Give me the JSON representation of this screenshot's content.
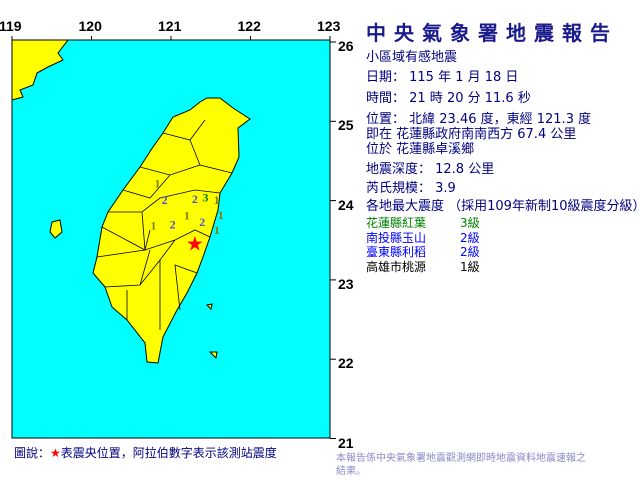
{
  "header": {
    "title": "中央氣象署地震報告",
    "subtitle": "小區域有感地震"
  },
  "report": {
    "date": "日期： 115 年 1 月 18 日",
    "time": "時間： 21 時 20 分 11.6 秒",
    "location": "位置： 北緯 23.46 度，東經 121.3 度",
    "relative": "即在 花蓮縣政府南南西方 67.4 公里",
    "township": "位於 花蓮縣卓溪鄉",
    "depth": "地震深度： 12.8 公里",
    "magnitude": "芮氏規模： 3.9",
    "intensity_header": "各地最大震度 （採用109年新制10級震度分級）"
  },
  "stations": [
    {
      "name": "花蓮縣紅葉",
      "level": "3級",
      "color": "#008000"
    },
    {
      "name": "南投縣玉山",
      "level": "2級",
      "color": "#0000ff"
    },
    {
      "name": "臺東縣利稻",
      "level": "2級",
      "color": "#0000ff"
    },
    {
      "name": "高雄市桃源",
      "level": "1級",
      "color": "#000000"
    }
  ],
  "map": {
    "lon_labels": [
      "119",
      "120",
      "121",
      "122",
      "123"
    ],
    "lat_labels": [
      "26",
      "25",
      "24",
      "23",
      "22",
      "21"
    ],
    "epicenter": {
      "lat": 23.46,
      "lon": 121.3,
      "icon": "red-star"
    },
    "intensity_marks": [
      {
        "v": "1",
        "lon": 120.83,
        "lat": 24.23
      },
      {
        "v": "2",
        "lon": 120.92,
        "lat": 24.02
      },
      {
        "v": "1",
        "lon": 120.78,
        "lat": 23.7
      },
      {
        "v": "2",
        "lon": 121.02,
        "lat": 23.71
      },
      {
        "v": "1",
        "lon": 121.2,
        "lat": 23.66
      },
      {
        "v": "2",
        "lon": 121.28,
        "lat": 23.74
      },
      {
        "v": "2",
        "lon": 121.3,
        "lat": 23.87
      },
      {
        "v": "3",
        "lon": 121.32,
        "lat": 24.05
      },
      {
        "v": "1",
        "lon": 121.46,
        "lat": 24.02
      },
      {
        "v": "1",
        "lon": 121.4,
        "lat": 23.83
      },
      {
        "v": "1",
        "lon": 121.35,
        "lat": 23.64
      }
    ],
    "colors": {
      "sea": "#00ffff",
      "land": "#ffff00",
      "epicenter": "#ff0000"
    }
  },
  "legend": {
    "prefix": "圖說：",
    "star": "★",
    "text": "表震央位置，阿拉伯數字表示該測站震度"
  },
  "footnote": "本報告係中央氣象署地震觀測網即時地震資料地震速報之結果。"
}
